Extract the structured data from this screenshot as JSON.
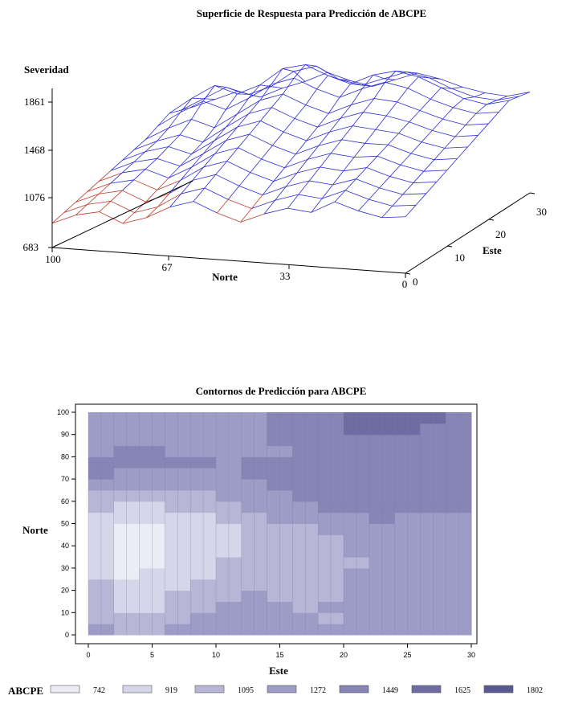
{
  "chart_data": [
    {
      "type": "surface",
      "title": "Superficie de Respuesta para Predicción de ABCPE",
      "zlabel": "Severidad",
      "xlabel": "Norte",
      "ylabel": "Este",
      "z_ticks": [
        "1861",
        "1468",
        "1076",
        "683"
      ],
      "norte_ticks": [
        "100",
        "67",
        "33",
        "0"
      ],
      "este_ticks": [
        "30",
        "20",
        "10",
        "0"
      ],
      "zlim": [
        683,
        1861
      ],
      "xlim": [
        0,
        100
      ],
      "ylim": [
        0,
        30
      ],
      "wire_color_above": "#2b2bd6",
      "wire_color_below": "#c0392b",
      "surface_rows": [
        [
          1280,
          1350,
          1420,
          1380,
          1460,
          1520,
          1600,
          1540,
          1500,
          1560,
          1620,
          1580,
          1520,
          1480,
          1460,
          1500
        ],
        [
          1300,
          1400,
          1500,
          1450,
          1520,
          1650,
          1700,
          1600,
          1560,
          1620,
          1680,
          1640,
          1560,
          1500,
          1480,
          1520
        ],
        [
          1320,
          1450,
          1560,
          1500,
          1580,
          1720,
          1760,
          1680,
          1620,
          1700,
          1740,
          1700,
          1620,
          1540,
          1500,
          1540
        ],
        [
          1260,
          1380,
          1480,
          1420,
          1520,
          1640,
          1700,
          1620,
          1560,
          1640,
          1700,
          1660,
          1580,
          1520,
          1480,
          1500
        ],
        [
          1200,
          1300,
          1380,
          1320,
          1440,
          1560,
          1620,
          1540,
          1480,
          1560,
          1620,
          1600,
          1540,
          1480,
          1440,
          1460
        ],
        [
          1160,
          1240,
          1300,
          1250,
          1380,
          1500,
          1560,
          1480,
          1420,
          1500,
          1560,
          1540,
          1500,
          1440,
          1400,
          1420
        ],
        [
          1120,
          1200,
          1250,
          1200,
          1320,
          1440,
          1500,
          1420,
          1360,
          1440,
          1500,
          1480,
          1460,
          1400,
          1360,
          1380
        ],
        [
          1080,
          1160,
          1200,
          1150,
          1260,
          1380,
          1440,
          1360,
          1300,
          1380,
          1440,
          1420,
          1420,
          1360,
          1320,
          1340
        ],
        [
          1040,
          1120,
          1160,
          1100,
          1200,
          1320,
          1380,
          1300,
          1240,
          1320,
          1380,
          1360,
          1380,
          1320,
          1280,
          1300
        ],
        [
          1000,
          1080,
          1120,
          1050,
          1140,
          1260,
          1320,
          1240,
          1180,
          1260,
          1320,
          1300,
          1340,
          1280,
          1240,
          1260
        ],
        [
          960,
          1040,
          1080,
          1000,
          1080,
          1200,
          1260,
          1180,
          1120,
          1200,
          1260,
          1240,
          1300,
          1240,
          1200,
          1220
        ],
        [
          920,
          1000,
          1040,
          960,
          1020,
          1140,
          1200,
          1120,
          1060,
          1140,
          1200,
          1180,
          1260,
          1200,
          1160,
          1180
        ],
        [
          880,
          960,
          1000,
          920,
          980,
          1080,
          1140,
          1060,
          1000,
          1080,
          1140,
          1120,
          1220,
          1160,
          1120,
          1140
        ]
      ]
    },
    {
      "type": "heatmap",
      "title": "Contornos de Predicción para ABCPE",
      "xlabel": "Este",
      "ylabel": "Norte",
      "x_ticks": [
        "0",
        "5",
        "10",
        "15",
        "20",
        "25",
        "30"
      ],
      "y_ticks": [
        "0",
        "10",
        "20",
        "30",
        "40",
        "50",
        "60",
        "70",
        "80",
        "90",
        "100"
      ],
      "xlim": [
        0,
        30
      ],
      "ylim": [
        0,
        100
      ],
      "legend_title": "ABCPE",
      "levels": [
        "742",
        "919",
        "1095",
        "1272",
        "1449",
        "1625",
        "1802"
      ],
      "level_colors": [
        "#ececf6",
        "#d6d6ea",
        "#b7b6d6",
        "#9d9cc6",
        "#8685b6",
        "#6e6ca3",
        "#5a5893"
      ],
      "grid_x": [
        0,
        2,
        4,
        6,
        8,
        10,
        12,
        14,
        16,
        18,
        20,
        22,
        24,
        26,
        28,
        30
      ],
      "grid_y": [
        0,
        5,
        10,
        15,
        20,
        25,
        30,
        35,
        40,
        45,
        50,
        55,
        60,
        65,
        70,
        75,
        80,
        85,
        90,
        95,
        100
      ],
      "values": [
        [
          1250,
          1200,
          1150,
          1200,
          1250,
          1230,
          1250,
          1230,
          1230,
          1250,
          1270,
          1270,
          1280,
          1270,
          1280,
          1300
        ],
        [
          1240,
          1150,
          1100,
          1180,
          1230,
          1240,
          1260,
          1240,
          1220,
          1150,
          1120,
          1200,
          1250,
          1250,
          1260,
          1270
        ],
        [
          1230,
          1050,
          1000,
          1100,
          1150,
          1200,
          1240,
          1230,
          1200,
          1180,
          1200,
          1230,
          1240,
          1180,
          1230,
          1240
        ],
        [
          1200,
          950,
          900,
          1000,
          1080,
          1150,
          1200,
          1220,
          1180,
          1160,
          1200,
          1250,
          1260,
          1240,
          1250,
          1260
        ],
        [
          1180,
          900,
          850,
          950,
          1050,
          1100,
          1150,
          1180,
          1150,
          1140,
          1180,
          1230,
          1260,
          1250,
          1250,
          1270
        ],
        [
          1150,
          870,
          800,
          900,
          1000,
          1050,
          1120,
          1150,
          1120,
          1120,
          1160,
          1220,
          1250,
          1230,
          1240,
          1260
        ],
        [
          1100,
          850,
          800,
          870,
          950,
          1000,
          1080,
          1130,
          1100,
          1100,
          1150,
          1210,
          1250,
          1200,
          1230,
          1250
        ],
        [
          1080,
          830,
          780,
          850,
          920,
          980,
          1050,
          1100,
          1080,
          1090,
          1150,
          1200,
          1240,
          1200,
          1220,
          1240
        ],
        [
          1060,
          820,
          770,
          830,
          900,
          960,
          1030,
          1080,
          1100,
          1120,
          1180,
          1220,
          1240,
          1230,
          1240,
          1260
        ],
        [
          1040,
          800,
          760,
          820,
          890,
          950,
          1020,
          1080,
          1120,
          1160,
          1220,
          1250,
          1260,
          1260,
          1270,
          1280
        ],
        [
          1050,
          850,
          800,
          860,
          920,
          980,
          1050,
          1120,
          1180,
          1230,
          1270,
          1290,
          1290,
          1280,
          1290,
          1290
        ],
        [
          1080,
          950,
          900,
          950,
          1000,
          1050,
          1120,
          1200,
          1260,
          1300,
          1380,
          1420,
          1450,
          1420,
          1400,
          1380
        ],
        [
          1150,
          1050,
          1000,
          1050,
          1100,
          1150,
          1220,
          1300,
          1350,
          1400,
          1450,
          1500,
          1520,
          1500,
          1480,
          1450
        ],
        [
          1200,
          1150,
          1120,
          1150,
          1180,
          1230,
          1280,
          1340,
          1380,
          1420,
          1470,
          1520,
          1540,
          1520,
          1500,
          1480
        ],
        [
          1300,
          1280,
          1250,
          1260,
          1270,
          1300,
          1330,
          1380,
          1420,
          1440,
          1470,
          1500,
          1520,
          1500,
          1480,
          1470
        ],
        [
          1440,
          1450,
          1450,
          1430,
          1400,
          1380,
          1380,
          1400,
          1420,
          1450,
          1470,
          1480,
          1500,
          1480,
          1460,
          1450
        ],
        [
          1400,
          1420,
          1430,
          1420,
          1380,
          1340,
          1330,
          1350,
          1380,
          1420,
          1460,
          1480,
          1490,
          1480,
          1460,
          1450
        ],
        [
          1300,
          1320,
          1320,
          1310,
          1300,
          1300,
          1310,
          1330,
          1380,
          1440,
          1480,
          1500,
          1510,
          1500,
          1480,
          1460
        ],
        [
          1280,
          1290,
          1290,
          1290,
          1290,
          1300,
          1320,
          1360,
          1420,
          1480,
          1520,
          1540,
          1540,
          1530,
          1500,
          1470
        ],
        [
          1270,
          1280,
          1280,
          1280,
          1290,
          1300,
          1330,
          1380,
          1440,
          1500,
          1540,
          1560,
          1560,
          1550,
          1520,
          1480
        ],
        [
          1270,
          1270,
          1270,
          1270,
          1280,
          1300,
          1330,
          1380,
          1440,
          1500,
          1550,
          1570,
          1570,
          1560,
          1520,
          1480
        ]
      ]
    }
  ]
}
